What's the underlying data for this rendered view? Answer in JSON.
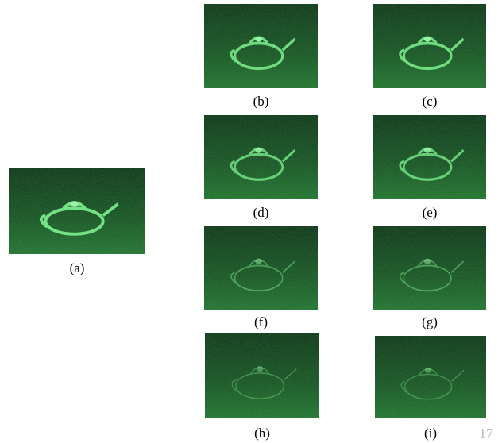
{
  "figure": {
    "panels": [
      {
        "label": "(a)"
      },
      {
        "label": "(b)"
      },
      {
        "label": "(c)"
      },
      {
        "label": "(d)"
      },
      {
        "label": "(e)"
      },
      {
        "label": "(f)"
      },
      {
        "label": "(g)"
      },
      {
        "label": "(h)"
      },
      {
        "label": "(i)"
      }
    ]
  },
  "page_number": "17"
}
